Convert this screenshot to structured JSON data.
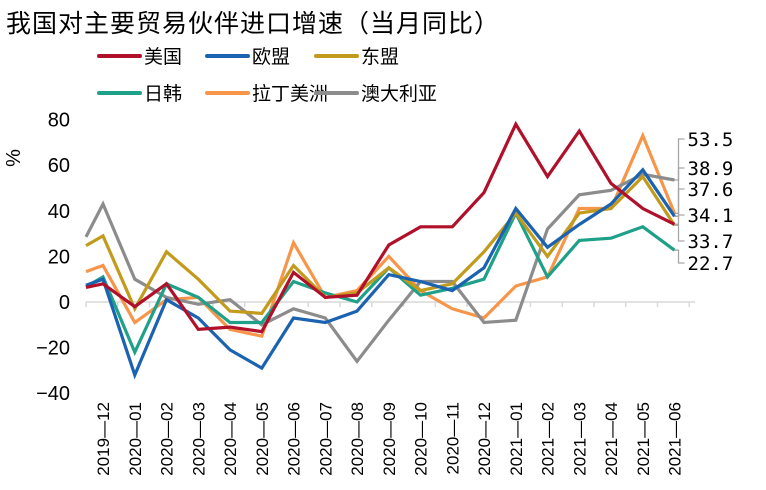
{
  "chart_data": {
    "type": "line",
    "title": "我国对主要贸易伙伴进口增速（当月同比）",
    "ylabel": "%",
    "xlabel": "",
    "ylim": [
      -40,
      80
    ],
    "yticks": [
      80,
      60,
      40,
      20,
      0,
      -20,
      -40
    ],
    "ytick_labels": [
      "80",
      "60",
      "40",
      "20",
      "0",
      "−20",
      "−40"
    ],
    "grid": false,
    "legend_position": "top",
    "categories": [
      "2019-12",
      "2020-01",
      "2020-02",
      "2020-03",
      "2020-04",
      "2020-05",
      "2020-06",
      "2020-07",
      "2020-08",
      "2020-09",
      "2020-10",
      "2020-11",
      "2020-12",
      "2021-01",
      "2021-02",
      "2021-03",
      "2021-04",
      "2021-05",
      "2021-06"
    ],
    "series": [
      {
        "name": "美国",
        "color": "#B0102A",
        "lead_in": 5,
        "values": [
          8,
          -2,
          8,
          -12,
          -11,
          -13,
          13,
          2,
          3,
          25,
          33,
          33,
          48,
          78,
          55,
          75,
          52,
          41,
          34.1
        ],
        "end_label": "34.1"
      },
      {
        "name": "欧盟",
        "color": "#1B63B0",
        "lead_in": 5,
        "values": [
          10,
          -32,
          1,
          -7,
          -21,
          -29,
          -7,
          -9,
          -4,
          12,
          9,
          5,
          15,
          41,
          24,
          34,
          43,
          58,
          37.6
        ],
        "end_label": "37.6"
      },
      {
        "name": "东盟",
        "color": "#C39B1C",
        "lead_in": 21,
        "values": [
          29,
          -3,
          22,
          10,
          -4,
          -5,
          16,
          2,
          4,
          15,
          5,
          8,
          22,
          39,
          20,
          39,
          41,
          55,
          33.7
        ],
        "end_label": "33.7"
      },
      {
        "name": "日韩",
        "color": "#1FA088",
        "lead_in": 3,
        "values": [
          11,
          -22,
          8,
          2,
          -9,
          -9,
          9,
          4,
          0,
          15,
          3,
          6,
          10,
          39,
          11,
          27,
          28,
          33,
          22.7
        ],
        "end_label": "22.7"
      },
      {
        "name": "拉丁美洲",
        "color": "#F7964A",
        "lead_in": 11,
        "values": [
          16,
          -9,
          1,
          2,
          -12,
          -15,
          26,
          2,
          5,
          20,
          5,
          -3,
          -7,
          7,
          11,
          41,
          41,
          73,
          38.9
        ],
        "end_label": "38.9"
      },
      {
        "name": "澳大利亚",
        "color": "#8C8C8C",
        "lead_in": 16,
        "values": [
          43,
          10,
          2,
          -1,
          1,
          -10,
          -3,
          -7,
          -26,
          -8,
          9,
          9,
          -9,
          -8,
          32,
          47,
          49,
          56,
          53.5
        ],
        "end_label": "53.5"
      }
    ],
    "end_labels_order": [
      "53.5",
      "38.9",
      "37.6",
      "34.1",
      "33.7",
      "22.7"
    ]
  }
}
